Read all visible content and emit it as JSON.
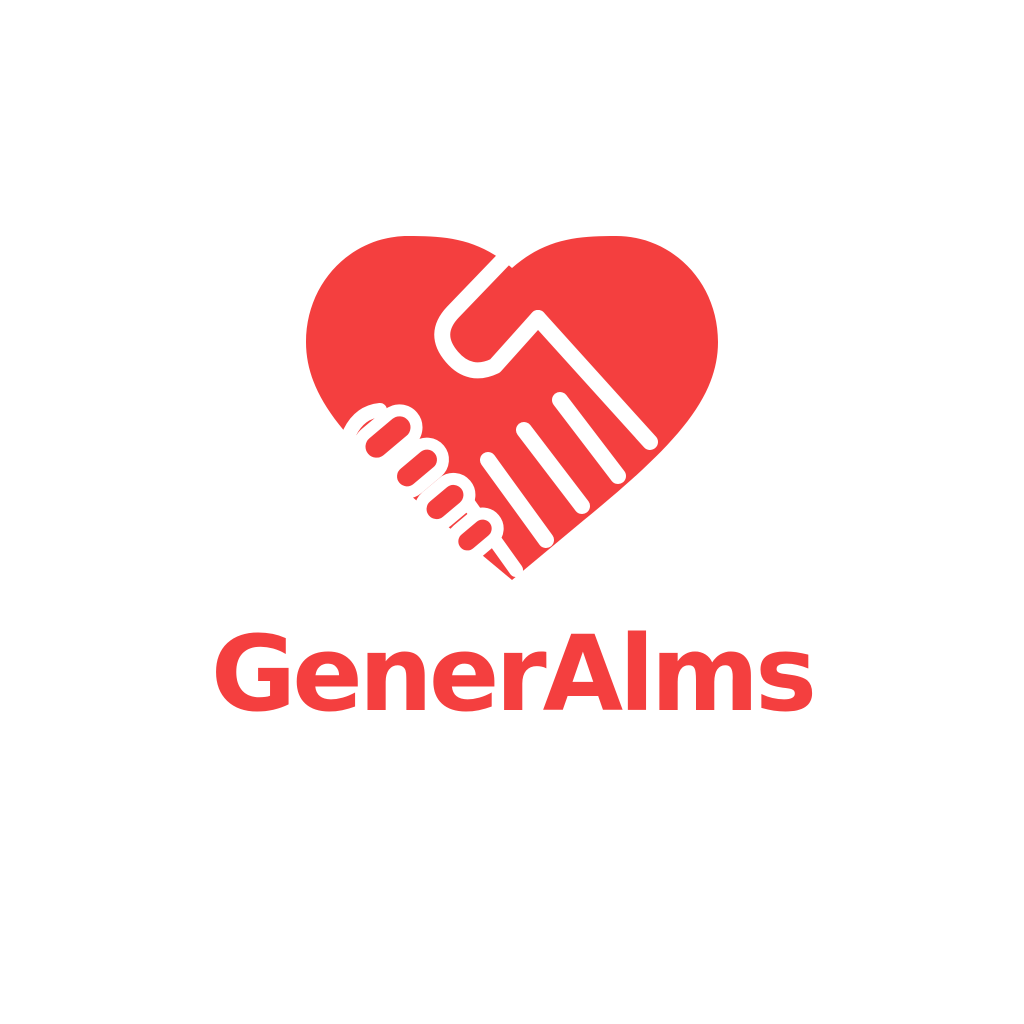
{
  "brand": {
    "name": "GenerAlms",
    "color": "#f43f3f",
    "background": "#ffffff"
  },
  "logo": {
    "icon": "heart-handshake-icon"
  }
}
